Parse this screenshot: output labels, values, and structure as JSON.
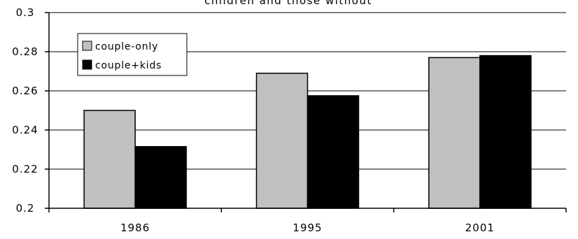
{
  "chart_data": {
    "type": "bar",
    "title": "children and those without",
    "categories": [
      "1986",
      "1995",
      "2001"
    ],
    "series": [
      {
        "name": "couple-only",
        "color": "#c0c0c0",
        "values": [
          0.25,
          0.269,
          0.277
        ]
      },
      {
        "name": "couple+kids",
        "color": "#000000",
        "values": [
          0.2315,
          0.2575,
          0.278
        ]
      }
    ],
    "ylim": [
      0.2,
      0.3
    ],
    "yticks": [
      "0.2",
      "0.22",
      "0.24",
      "0.26",
      "0.28",
      "0.3"
    ],
    "grid": true,
    "legend_position": "top-left"
  }
}
